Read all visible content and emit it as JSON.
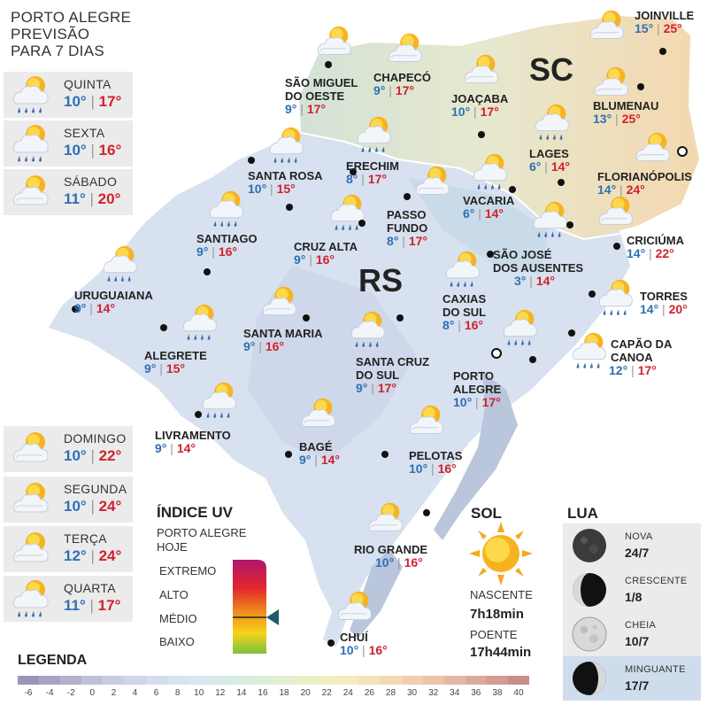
{
  "header": {
    "line1": "PORTO ALEGRE",
    "line2": "PREVISÃO",
    "line3": "PARA 7 DIAS"
  },
  "forecast": [
    {
      "day": "QUINTA",
      "min": "10°",
      "max": "17°",
      "icon": "sun-cloud-rain-icon"
    },
    {
      "day": "SEXTA",
      "min": "10°",
      "max": "16°",
      "icon": "sun-cloud-rain-icon"
    },
    {
      "day": "SÁBADO",
      "min": "11°",
      "max": "20°",
      "icon": "sun-cloud-icon"
    },
    {
      "day": "DOMINGO",
      "min": "10°",
      "max": "22°",
      "icon": "sun-cloud-icon"
    },
    {
      "day": "SEGUNDA",
      "min": "10°",
      "max": "24°",
      "icon": "sun-cloud-icon"
    },
    {
      "day": "TERÇA",
      "min": "12°",
      "max": "24°",
      "icon": "sun-cloud-icon"
    },
    {
      "day": "QUARTA",
      "min": "11°",
      "max": "17°",
      "icon": "sun-cloud-rain-icon"
    }
  ],
  "states": {
    "sc": "SC",
    "rs": "RS"
  },
  "cities": [
    {
      "name": "SÃO MIGUEL",
      "name2": "DO OESTE",
      "min": "9°",
      "max": "17°"
    },
    {
      "name": "CHAPECÓ",
      "min": "9°",
      "max": "17°"
    },
    {
      "name": "JOAÇABA",
      "min": "10°",
      "max": "17°"
    },
    {
      "name": "JOINVILLE",
      "min": "15°",
      "max": "25°"
    },
    {
      "name": "BLUMENAU",
      "min": "13°",
      "max": "25°"
    },
    {
      "name": "LAGES",
      "min": "6°",
      "max": "14°"
    },
    {
      "name": "FLORIANÓPOLIS",
      "min": "14°",
      "max": "24°"
    },
    {
      "name": "ERECHIM",
      "min": "8°",
      "max": "17°"
    },
    {
      "name": "SANTA ROSA",
      "min": "10°",
      "max": "15°"
    },
    {
      "name": "VACARIA",
      "min": "6°",
      "max": "14°"
    },
    {
      "name": "PASSO",
      "name2": "FUNDO",
      "min": "8°",
      "max": "17°"
    },
    {
      "name": "CRICIÚMA",
      "min": "14°",
      "max": "22°"
    },
    {
      "name": "SANTIAGO",
      "min": "9°",
      "max": "16°"
    },
    {
      "name": "CRUZ ALTA",
      "min": "9°",
      "max": "16°"
    },
    {
      "name": "SÃO JOSÉ",
      "name2": "DOS AUSENTES",
      "min": "3°",
      "max": "14°"
    },
    {
      "name": "TORRES",
      "min": "14°",
      "max": "20°"
    },
    {
      "name": "URUGUAIANA",
      "min": "9°",
      "max": "14°"
    },
    {
      "name": "CAXIAS",
      "name2": "DO SUL",
      "min": "8°",
      "max": "16°"
    },
    {
      "name": "SANTA MARIA",
      "min": "9°",
      "max": "16°"
    },
    {
      "name": "CAPÃO DA",
      "name2": "CANOA",
      "min": "12°",
      "max": "17°"
    },
    {
      "name": "ALEGRETE",
      "min": "9°",
      "max": "15°"
    },
    {
      "name": "SANTA CRUZ",
      "name2": "DO SUL",
      "min": "9°",
      "max": "17°"
    },
    {
      "name": "PORTO",
      "name2": "ALEGRE",
      "min": "10°",
      "max": "17°"
    },
    {
      "name": "LIVRAMENTO",
      "min": "9°",
      "max": "14°"
    },
    {
      "name": "BAGÉ",
      "min": "9°",
      "max": "14°"
    },
    {
      "name": "PELOTAS",
      "min": "10°",
      "max": "16°"
    },
    {
      "name": "RIO GRANDE",
      "min": "10°",
      "max": "16°"
    },
    {
      "name": "CHUÍ",
      "min": "10°",
      "max": "16°"
    }
  ],
  "uv": {
    "title": "ÍNDICE UV",
    "sub1": "PORTO ALEGRE",
    "sub2": "HOJE",
    "levels": [
      "EXTREMO",
      "ALTO",
      "MÉDIO",
      "BAIXO"
    ],
    "current_level": "MÉDIO",
    "gradient": [
      "#b0166e",
      "#e2262d",
      "#f08a1c",
      "#f7d21a",
      "#7cc242"
    ]
  },
  "sun": {
    "title": "SOL",
    "sunrise_label": "NASCENTE",
    "sunrise": "7h18min",
    "sunset_label": "POENTE",
    "sunset": "17h44min"
  },
  "moon": {
    "title": "LUA",
    "phases": [
      {
        "name": "NOVA",
        "date": "24/7",
        "icon": "new-moon-icon"
      },
      {
        "name": "CRESCENTE",
        "date": "1/8",
        "icon": "first-quarter-moon-icon"
      },
      {
        "name": "CHEIA",
        "date": "10/7",
        "icon": "full-moon-icon"
      },
      {
        "name": "MINGUANTE",
        "date": "17/7",
        "icon": "last-quarter-moon-icon",
        "highlight": true
      }
    ]
  },
  "legend": {
    "title": "LEGENDA",
    "ticks": [
      "-6",
      "-4",
      "-2",
      "0",
      "2",
      "4",
      "6",
      "8",
      "10",
      "12",
      "14",
      "16",
      "18",
      "20",
      "22",
      "24",
      "26",
      "28",
      "30",
      "32",
      "34",
      "36",
      "38",
      "40"
    ],
    "colors": [
      "#9a95b7",
      "#a7a3c2",
      "#b3b2cc",
      "#bfc1d7",
      "#c8cde0",
      "#cfd6e8",
      "#d4ddee",
      "#d7e3f0",
      "#d9e8f0",
      "#d6ebe8",
      "#d6ede0",
      "#dbefd8",
      "#e2f0cf",
      "#eaf0c6",
      "#f1efbf",
      "#f5ebbb",
      "#f5e3b8",
      "#f3d9b4",
      "#efcfb0",
      "#ebc4aa",
      "#e4b7a4",
      "#dcaa9c",
      "#d39c93",
      "#c88e89"
    ]
  },
  "colors": {
    "min_temp": "#2f6fb5",
    "max_temp": "#d1222c"
  }
}
